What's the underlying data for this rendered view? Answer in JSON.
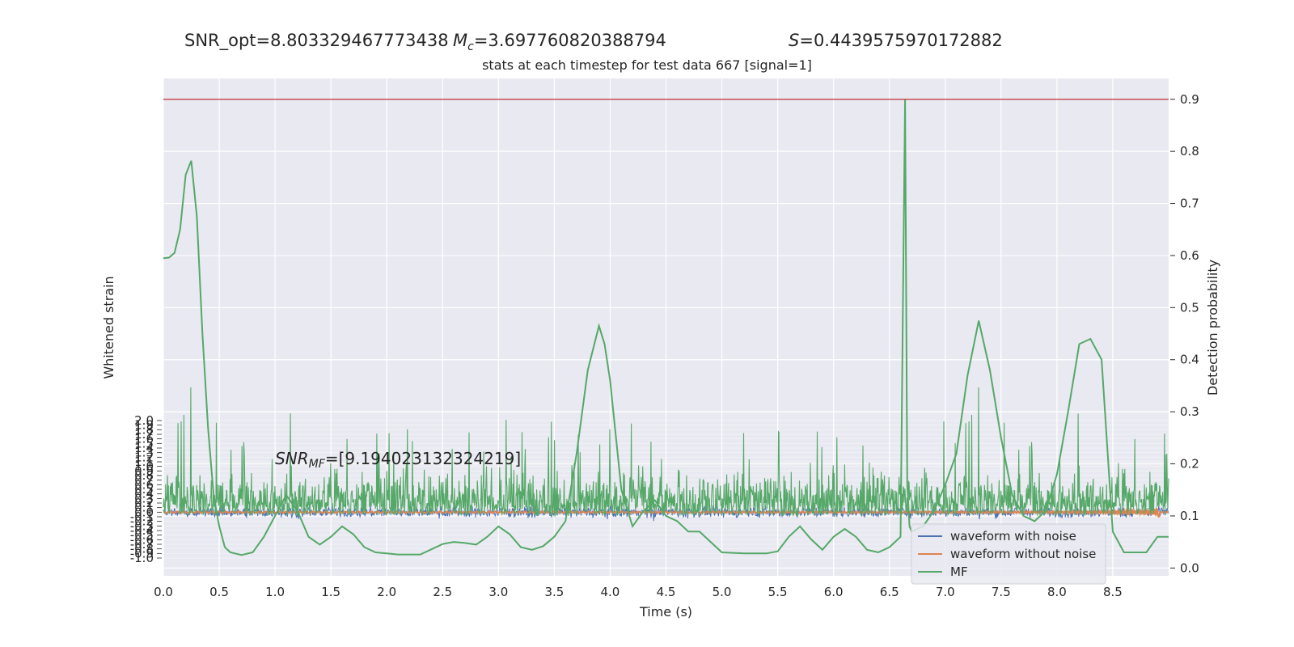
{
  "header": {
    "snr_opt": "SNR_opt=8.803329467773438",
    "mc_symbol": "M",
    "mc_sub": "c",
    "mc_value": "=3.697760820388794",
    "s_symbol": "S",
    "s_value": "=0.4439575970172882"
  },
  "colors": {
    "background": "#e9e9f1",
    "grid": "#ffffff",
    "noise": "#4c72b0",
    "clean": "#dd8452",
    "mf": "#55a868",
    "threshold": "#c44e52"
  },
  "chart_data": {
    "type": "line",
    "title": "stats at each timestep for test data 667 [signal=1]",
    "xlabel": "Time (s)",
    "ylabel_left": "Whitened strain",
    "ylabel_right": "Detection probability",
    "xlim": [
      0.0,
      9.0
    ],
    "x_ticks": [
      "0.0",
      "0.5",
      "1.0",
      "1.5",
      "2.0",
      "2.5",
      "3.0",
      "3.5",
      "4.0",
      "4.5",
      "5.0",
      "5.5",
      "6.0",
      "6.5",
      "7.0",
      "7.5",
      "8.0",
      "8.5"
    ],
    "ylim_left": [
      -1.0,
      2.0
    ],
    "ylim_right": [
      -0.015,
      0.94
    ],
    "right_ticks": [
      "0.0",
      "0.1",
      "0.2",
      "0.3",
      "0.4",
      "0.5",
      "0.6",
      "0.7",
      "0.8",
      "0.9"
    ],
    "left_ticks": [
      "2.0",
      "1.9",
      "1.8",
      "1.7",
      "1.6",
      "1.5",
      "1.4",
      "1.3",
      "1.2",
      "1.1",
      "1.0",
      "0.9",
      "0.8",
      "0.7",
      "0.6",
      "0.5",
      "0.4",
      "0.3",
      "0.2",
      "0.1",
      "0.0",
      "-0.1",
      "-0.2",
      "-0.3",
      "-0.4",
      "-0.5",
      "-0.6",
      "-0.7",
      "-0.8",
      "-0.9",
      "-1.0"
    ],
    "threshold": 0.9,
    "annotation_symbol": "SNR",
    "annotation_sub": "MF",
    "annotation_value": "=[9.194023132324219]",
    "legend_position": "bottom-right",
    "series": [
      {
        "name": "waveform with noise",
        "kind": "noise"
      },
      {
        "name": "waveform without noise",
        "kind": "chirp"
      },
      {
        "name": "MF",
        "kind": "probability",
        "x": [
          0.0,
          0.05,
          0.1,
          0.15,
          0.2,
          0.25,
          0.3,
          0.35,
          0.4,
          0.45,
          0.5,
          0.55,
          0.6,
          0.7,
          0.8,
          0.9,
          1.0,
          1.1,
          1.2,
          1.3,
          1.4,
          1.5,
          1.6,
          1.7,
          1.8,
          1.9,
          2.0,
          2.1,
          2.3,
          2.5,
          2.6,
          2.7,
          2.8,
          2.9,
          3.0,
          3.1,
          3.2,
          3.3,
          3.4,
          3.5,
          3.6,
          3.7,
          3.8,
          3.9,
          3.95,
          4.0,
          4.1,
          4.2,
          4.3,
          4.4,
          4.5,
          4.6,
          4.7,
          4.8,
          4.9,
          5.0,
          5.2,
          5.4,
          5.5,
          5.6,
          5.7,
          5.8,
          5.9,
          6.0,
          6.1,
          6.2,
          6.3,
          6.4,
          6.5,
          6.6,
          6.64,
          6.66,
          6.68,
          6.7,
          6.8,
          6.9,
          7.0,
          7.1,
          7.2,
          7.3,
          7.4,
          7.5,
          7.6,
          7.7,
          7.8,
          7.9,
          8.0,
          8.1,
          8.2,
          8.3,
          8.4,
          8.5,
          8.6,
          8.7,
          8.8,
          8.9,
          9.0
        ],
        "y": [
          0.595,
          0.596,
          0.605,
          0.65,
          0.755,
          0.782,
          0.675,
          0.45,
          0.27,
          0.14,
          0.08,
          0.04,
          0.03,
          0.025,
          0.03,
          0.06,
          0.1,
          0.14,
          0.11,
          0.06,
          0.045,
          0.06,
          0.08,
          0.065,
          0.04,
          0.03,
          0.028,
          0.026,
          0.026,
          0.046,
          0.05,
          0.048,
          0.045,
          0.06,
          0.08,
          0.065,
          0.04,
          0.035,
          0.042,
          0.06,
          0.09,
          0.22,
          0.38,
          0.465,
          0.43,
          0.36,
          0.15,
          0.08,
          0.11,
          0.13,
          0.1,
          0.09,
          0.07,
          0.07,
          0.05,
          0.03,
          0.028,
          0.028,
          0.032,
          0.06,
          0.08,
          0.055,
          0.035,
          0.06,
          0.075,
          0.06,
          0.035,
          0.03,
          0.04,
          0.06,
          0.9,
          0.16,
          0.08,
          0.07,
          0.08,
          0.11,
          0.16,
          0.22,
          0.37,
          0.475,
          0.38,
          0.25,
          0.14,
          0.1,
          0.09,
          0.11,
          0.18,
          0.3,
          0.43,
          0.44,
          0.4,
          0.07,
          0.03,
          0.03,
          0.03,
          0.06,
          0.06
        ]
      }
    ]
  }
}
